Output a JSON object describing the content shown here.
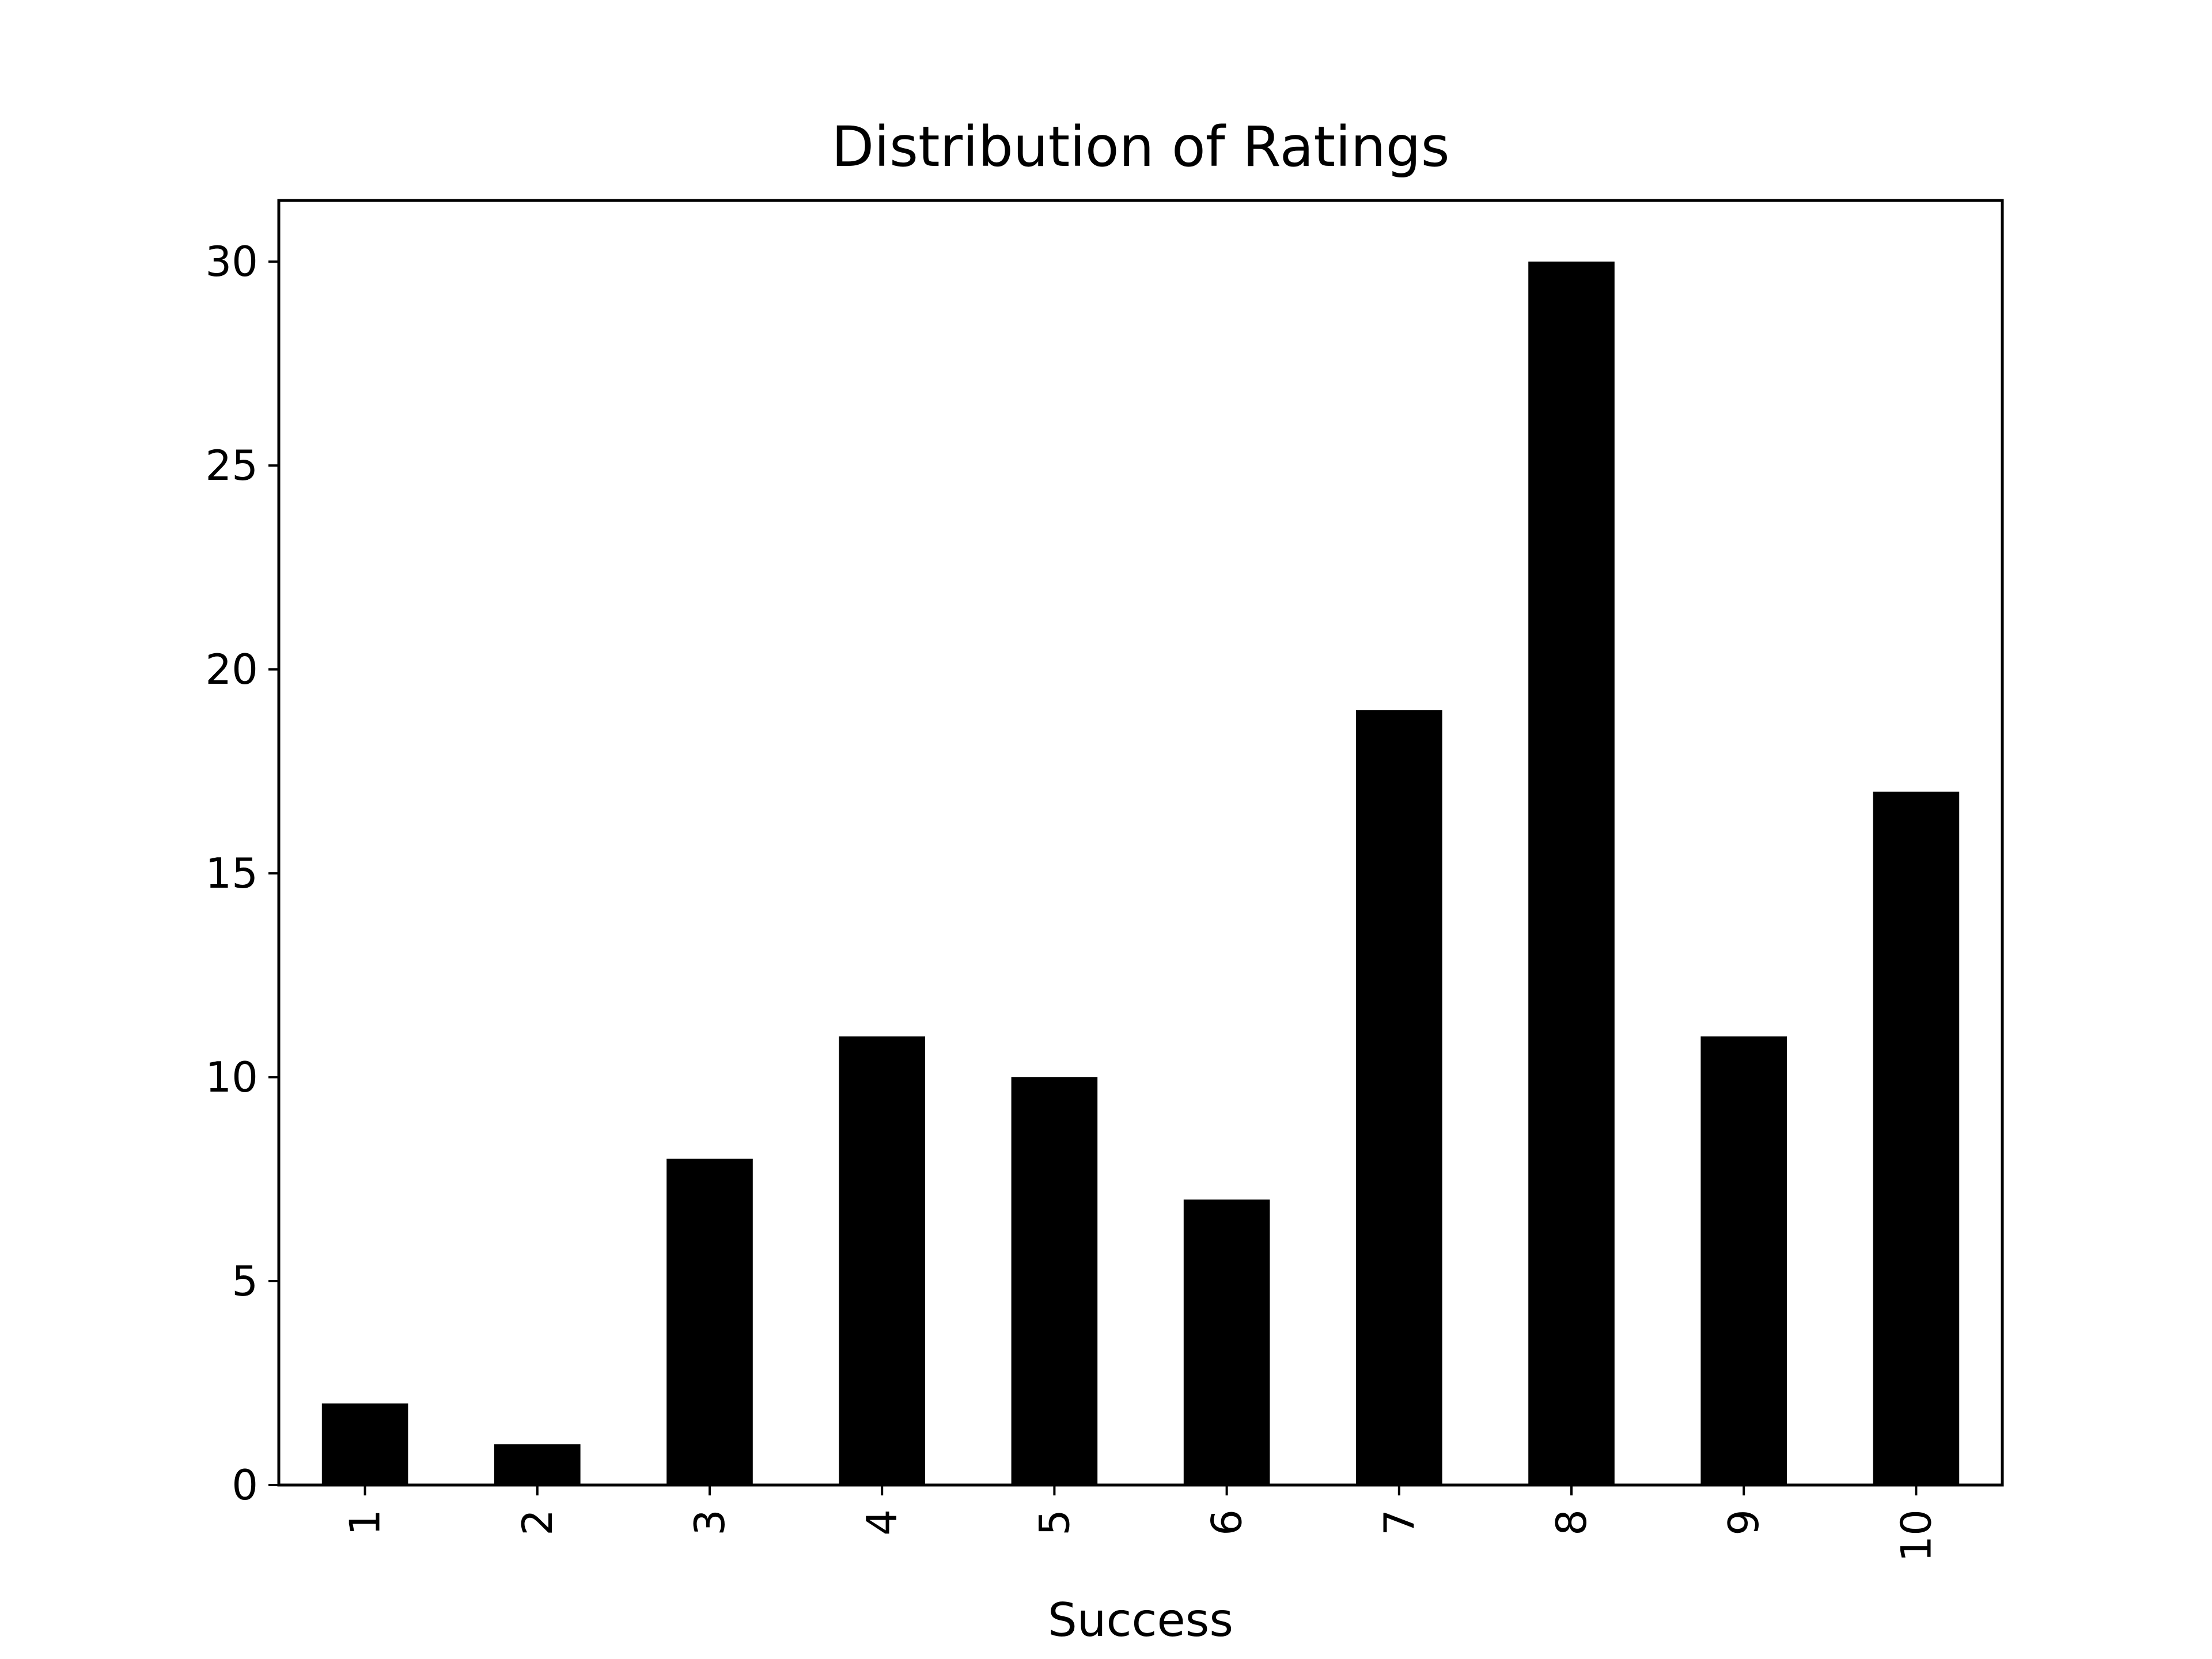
{
  "chart_data": {
    "type": "bar",
    "title": "Distribution of Ratings",
    "xlabel": "Success",
    "ylabel": "",
    "categories": [
      "1",
      "2",
      "3",
      "4",
      "5",
      "6",
      "7",
      "8",
      "9",
      "10"
    ],
    "values": [
      2,
      1,
      8,
      11,
      10,
      7,
      19,
      30,
      11,
      17
    ],
    "ylim": [
      0,
      31.5
    ],
    "yticks": [
      0,
      5,
      10,
      15,
      20,
      25,
      30
    ],
    "x_tick_rotation": "vertical",
    "grid": false,
    "legend": "none",
    "bar_color": "#000000",
    "background": "#ffffff"
  }
}
